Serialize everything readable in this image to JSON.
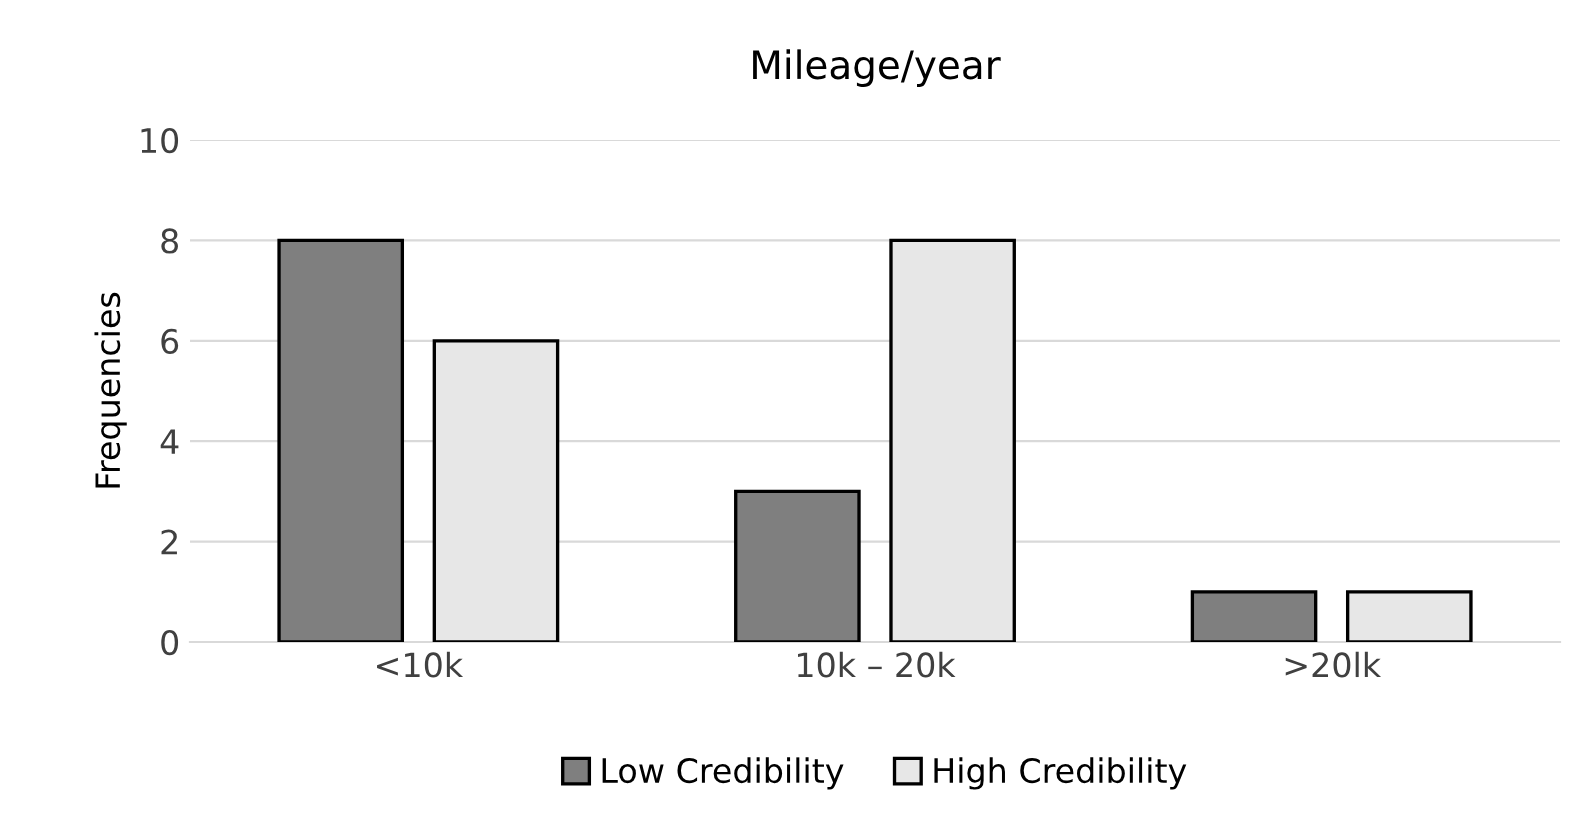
{
  "chart_data": {
    "type": "bar",
    "title": "Mileage/year",
    "ylabel": "Frequencies",
    "categories": [
      "<10k",
      "10k – 20k",
      ">20lk"
    ],
    "series": [
      {
        "name": "Low Credibility",
        "color": "#7f7f7f",
        "values": [
          8,
          3,
          1
        ]
      },
      {
        "name": "High Credibility",
        "color": "#e7e7e7",
        "values": [
          6,
          8,
          1
        ]
      }
    ],
    "ylim": [
      0,
      10
    ],
    "yticks": [
      0,
      2,
      4,
      6,
      8,
      10
    ],
    "grid": "y",
    "legend": "bottom"
  }
}
